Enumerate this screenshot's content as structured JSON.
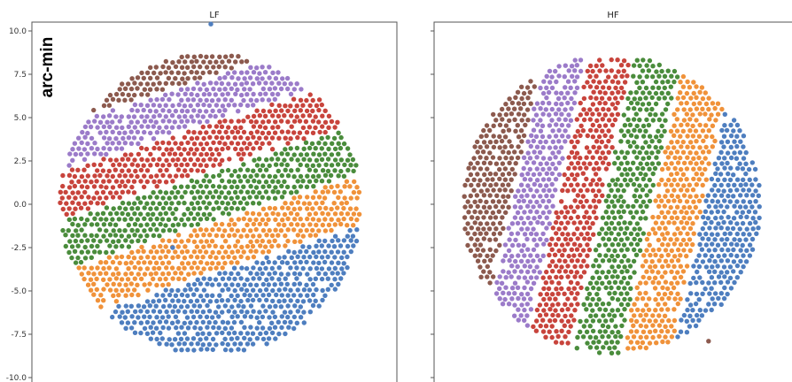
{
  "y_axis_label": "arc-min",
  "chart_data": [
    {
      "type": "scatter",
      "title": "LF",
      "ylabel": "arc-min",
      "ylim": [
        -10.0,
        10.0
      ],
      "yticks": [
        "10.0",
        "7.5",
        "5.0",
        "2.5",
        "0.0",
        "-2.5",
        "-5.0",
        "-7.5",
        "-10.0"
      ],
      "grid": false,
      "legend": "none",
      "field": {
        "center": [
          0.0,
          0.0
        ],
        "radius": 8.7
      },
      "band_angle_deg": 18,
      "series": [
        {
          "color": "#4e7ebf",
          "band": [
            -9.5,
            -3.9
          ]
        },
        {
          "color": "#f0923a",
          "band": [
            -3.7,
            -1.1
          ]
        },
        {
          "color": "#4a8c3c",
          "band": [
            -0.9,
            1.7
          ]
        },
        {
          "color": "#c8443c",
          "band": [
            1.9,
            4.4
          ]
        },
        {
          "color": "#9b7bc9",
          "band": [
            4.6,
            6.9
          ]
        },
        {
          "color": "#8c5a4e",
          "band": [
            7.1,
            10.5
          ]
        }
      ],
      "outliers": [
        {
          "x": 0.0,
          "y": 10.4,
          "color": "#4e7ebf"
        },
        {
          "x": -2.2,
          "y": -2.5,
          "color": "#4e7ebf"
        }
      ]
    },
    {
      "type": "scatter",
      "title": "HF",
      "ylim": [
        -10.0,
        10.0
      ],
      "grid": false,
      "legend": "none",
      "field": {
        "center": [
          0.0,
          0.0
        ],
        "radius": 8.6
      },
      "band_angle_deg": 78,
      "series": [
        {
          "color": "#4e7ebf",
          "band": [
            -9.5,
            -5.3
          ]
        },
        {
          "color": "#f0923a",
          "band": [
            -5.1,
            -2.4
          ]
        },
        {
          "color": "#4a8c3c",
          "band": [
            -2.2,
            0.4
          ]
        },
        {
          "color": "#c8443c",
          "band": [
            0.6,
            3.0
          ]
        },
        {
          "color": "#9b7bc9",
          "band": [
            3.2,
            5.5
          ]
        },
        {
          "color": "#8c5a4e",
          "band": [
            5.7,
            9.5
          ]
        }
      ],
      "outliers": [
        {
          "x": 5.6,
          "y": -7.9,
          "color": "#8c5a4e"
        }
      ]
    }
  ]
}
